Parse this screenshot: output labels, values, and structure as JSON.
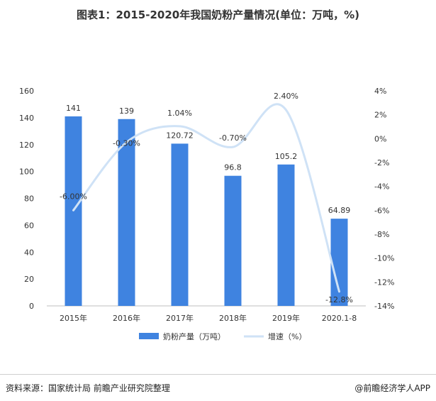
{
  "title": "图表1：2015-2020年我国奶粉产量情况(单位：万吨，%)",
  "source": "资料来源：国家统计局 前瞻产业研究院整理",
  "brand": "@前瞻经济学人APP",
  "colors": {
    "bar": "#3f83e0",
    "line": "#cfe2f6",
    "text": "#333333",
    "axis": "#999999"
  },
  "chart_data": {
    "type": "bar",
    "categories": [
      "2015年",
      "2016年",
      "2017年",
      "2018年",
      "2019年",
      "2020.1-8"
    ],
    "series": [
      {
        "name": "奶粉产量（万吨）",
        "type": "bar",
        "values": [
          141,
          139,
          120.72,
          96.8,
          105.2,
          64.89
        ],
        "labels": [
          "141",
          "139",
          "120.72",
          "96.8",
          "105.2",
          "64.89"
        ],
        "axis": "left"
      },
      {
        "name": "增速（%）",
        "type": "line",
        "values": [
          -6.0,
          -0.3,
          1.04,
          -0.7,
          2.4,
          -12.8
        ],
        "labels": [
          "-6.00%",
          "-0.30%",
          "1.04%",
          "-0.70%",
          "2.40%",
          "-12.8%"
        ],
        "axis": "right"
      }
    ],
    "y_left": {
      "min": 0,
      "max": 160,
      "ticks": [
        0,
        20,
        40,
        60,
        80,
        100,
        120,
        140,
        160
      ],
      "tick_labels": [
        "0",
        "20",
        "40",
        "60",
        "80",
        "100",
        "120",
        "140",
        "160"
      ]
    },
    "y_right": {
      "min": -14,
      "max": 4,
      "ticks": [
        -14,
        -12,
        -10,
        -8,
        -6,
        -4,
        -2,
        0,
        2,
        4
      ],
      "tick_labels": [
        "-14%",
        "-12%",
        "-10%",
        "-8%",
        "-6%",
        "-4%",
        "-2%",
        "0%",
        "2%",
        "4%"
      ]
    },
    "legend_position": "bottom",
    "grid": false
  }
}
